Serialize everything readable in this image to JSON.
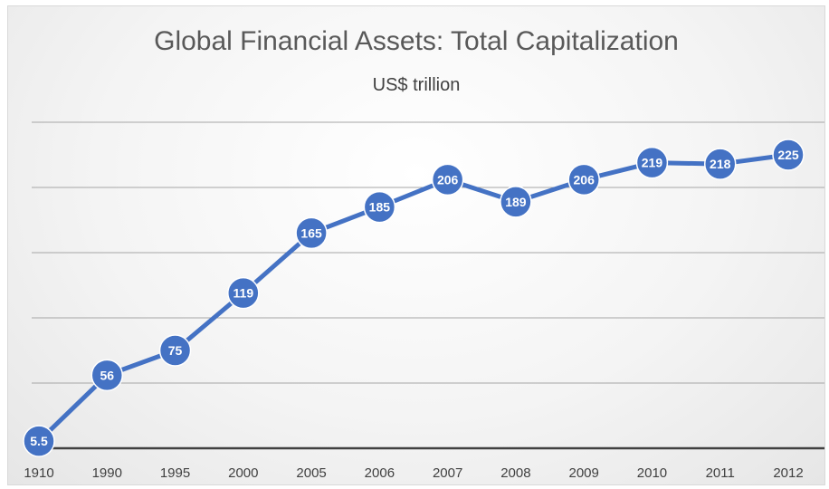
{
  "chart_data": {
    "type": "line",
    "title": "Global Financial Assets: Total Capitalization",
    "subtitle": "US$ trillion",
    "categories": [
      "1910",
      "1990",
      "1995",
      "2000",
      "2005",
      "2006",
      "2007",
      "2008",
      "2009",
      "2010",
      "2011",
      "2012"
    ],
    "series": [
      {
        "values": [
          5.5,
          56,
          75,
          119,
          165,
          185,
          206,
          189,
          206,
          219,
          218,
          225
        ],
        "labels": [
          "5.5",
          "56",
          "75",
          "119",
          "165",
          "185",
          "206",
          "189",
          "206",
          "219",
          "218",
          "225"
        ]
      }
    ],
    "ylim": [
      0,
      250
    ],
    "grid": true,
    "show_y_axis_labels": false,
    "colors": {
      "line": "#4472c4",
      "marker": "#4472c4",
      "data_label_text": "#ffffff",
      "gridline": "#a6a6a6",
      "axis": "#404040",
      "tick_label": "#404040",
      "title": "#595959"
    }
  }
}
